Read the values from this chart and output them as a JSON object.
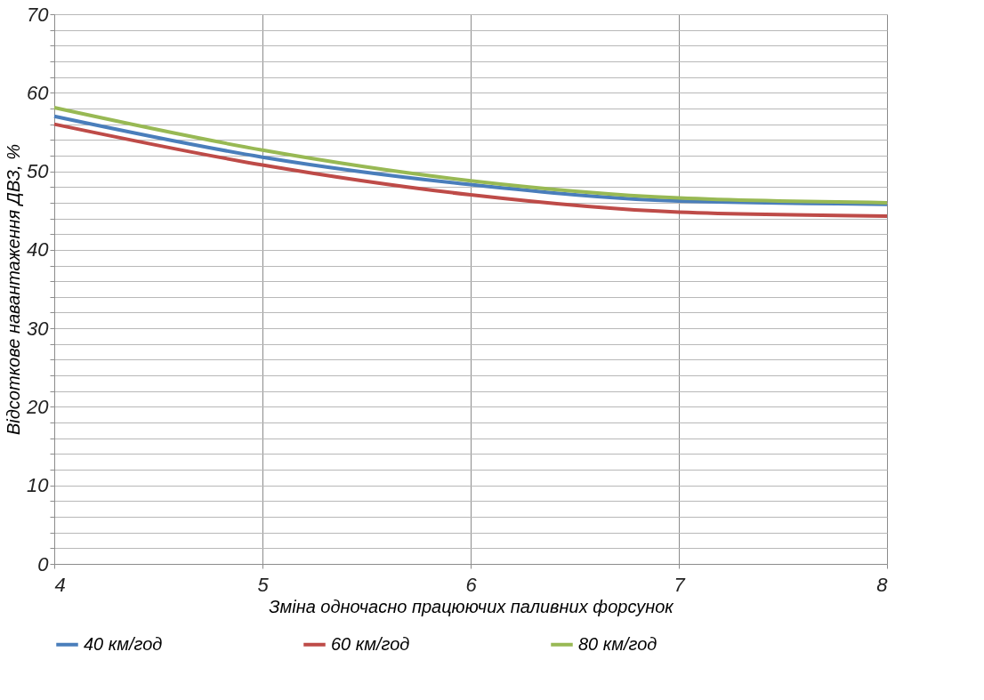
{
  "chart_data": {
    "type": "line",
    "xlabel": "Зміна одночасно працюючих паливних форсунок",
    "ylabel": "Відсоткове навантаження ДВЗ, %",
    "x": [
      4,
      5,
      6,
      7,
      8
    ],
    "series": [
      {
        "name": "40 км/год",
        "color": "#4a7ebb",
        "values": [
          57.0,
          51.8,
          48.3,
          46.2,
          45.8
        ]
      },
      {
        "name": "60 км/год",
        "color": "#be4b48",
        "values": [
          56.0,
          50.8,
          47.0,
          44.8,
          44.3
        ]
      },
      {
        "name": "80 км/год",
        "color": "#98b954",
        "values": [
          58.1,
          52.7,
          48.8,
          46.6,
          46.0
        ]
      }
    ],
    "xlim": [
      4,
      8
    ],
    "xticks": [
      4,
      5,
      6,
      7,
      8
    ],
    "ylim": [
      0,
      70
    ],
    "yticks": [
      0,
      {
        "value": 2,
        "label": null
      },
      {
        "value": 4,
        "label": null
      },
      {
        "value": 6,
        "label": null
      },
      {
        "value": 8,
        "label": null
      },
      10,
      {
        "value": 12,
        "label": null
      },
      {
        "value": 14,
        "label": null
      },
      {
        "value": 16,
        "label": null
      },
      {
        "value": 18,
        "label": null
      },
      20,
      {
        "value": 22,
        "label": null
      },
      {
        "value": 24,
        "label": null
      },
      {
        "value": 26,
        "label": null
      },
      {
        "value": 28,
        "label": null
      },
      30,
      {
        "value": 32,
        "label": null
      },
      {
        "value": 34,
        "label": null
      },
      {
        "value": 36,
        "label": null
      },
      {
        "value": 38,
        "label": null
      },
      40,
      {
        "value": 42,
        "label": null
      },
      {
        "value": 44,
        "label": null
      },
      {
        "value": 46,
        "label": null
      },
      {
        "value": 48,
        "label": null
      },
      50,
      {
        "value": 52,
        "label": null
      },
      {
        "value": 54,
        "label": null
      },
      {
        "value": 56,
        "label": null
      },
      {
        "value": 58,
        "label": null
      },
      60,
      {
        "value": 62,
        "label": null
      },
      {
        "value": 64,
        "label": null
      },
      {
        "value": 66,
        "label": null
      },
      {
        "value": 68,
        "label": null
      },
      70
    ],
    "grid": true,
    "legend": "bottom",
    "marker": "none",
    "line_style": "solid"
  }
}
